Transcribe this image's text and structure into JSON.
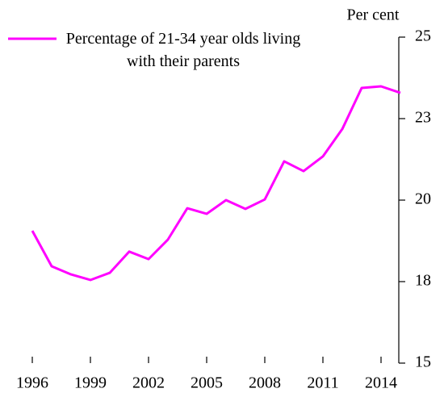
{
  "chart_data": {
    "type": "line",
    "y_label": "Per cent",
    "x": [
      1996,
      1997,
      1998,
      1999,
      2000,
      2001,
      2002,
      2003,
      2004,
      2005,
      2006,
      2007,
      2008,
      2009,
      2010,
      2011,
      2012,
      2013,
      2014,
      2015
    ],
    "series": [
      {
        "name": "Percentage of 21-34 year olds living with their parents",
        "color": "#ff00ff",
        "values": [
          19.06,
          17.97,
          17.72,
          17.55,
          17.77,
          18.42,
          18.19,
          18.79,
          19.75,
          19.58,
          20.0,
          19.73,
          20.02,
          21.19,
          20.89,
          21.34,
          22.18,
          23.44,
          23.49,
          23.29
        ]
      }
    ],
    "xlim": [
      1996,
      2015
    ],
    "xticks": [
      1996,
      1999,
      2002,
      2005,
      2008,
      2011,
      2014
    ],
    "ylim": [
      15,
      25
    ],
    "yticks": [
      15,
      {
        "value": 17.5,
        "label": "18"
      },
      20,
      {
        "value": 22.5,
        "label": "23"
      },
      25
    ],
    "y_axis_side": "right",
    "grid": false
  }
}
